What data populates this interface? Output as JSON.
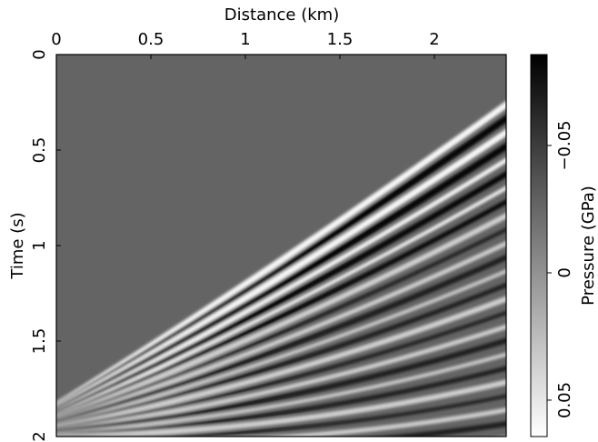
{
  "chart_data": {
    "type": "heatmap",
    "title": "Distance (km)",
    "y_label": "Time (s)",
    "xlim": [
      0,
      2.38
    ],
    "xticks": [
      0,
      0.5,
      1,
      1.5,
      2
    ],
    "ylim": [
      0,
      2
    ],
    "yticks": [
      0,
      0.5,
      1,
      1.5,
      2
    ],
    "colorbar": {
      "label": "Pressure (GPa)",
      "lim": [
        -0.0857,
        0.0643
      ],
      "ticks": [
        {
          "value": -0.05,
          "label": "−0.05"
        },
        0,
        0.05
      ]
    }
  }
}
